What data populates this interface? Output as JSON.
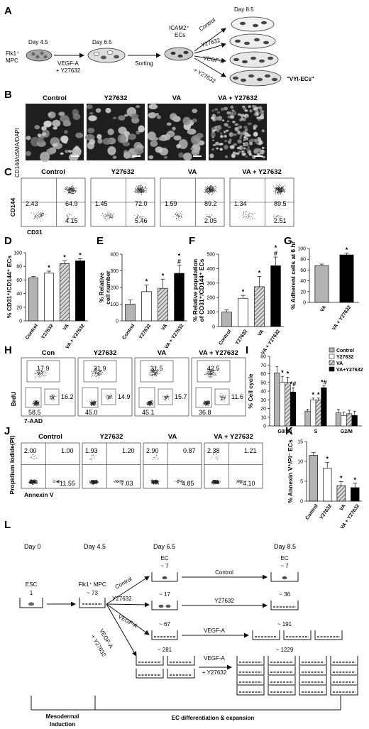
{
  "panels": {
    "A": {
      "letter": "A",
      "day45": "Day 4.5",
      "flk1": "Flk1⁺",
      "mpc": "MPC",
      "day65": "Day 6.5",
      "vegfa": "VEGF-A",
      "y27632": "+ Y27632",
      "sorting": "Sorting",
      "icam2": "ICAM2⁺",
      "ecs": "ECs",
      "day85": "Day 8.5",
      "arrows": [
        "Control",
        "Y27632",
        "VEGF-A",
        "VEGF-A\n+ Y27632"
      ],
      "vyi": "\"VYI-ECs\""
    },
    "B": {
      "letter": "B",
      "ylabel": "CD144/αSMA/DAPI",
      "headers": [
        "Control",
        "Y27632",
        "VA",
        "VA + Y27632"
      ]
    },
    "C": {
      "letter": "C",
      "headers": [
        "Control",
        "Y27632",
        "VA",
        "VA + Y27632"
      ],
      "ylabel": "CD144",
      "xlabel": "CD31",
      "quadrants": [
        {
          "ul": "2.43",
          "ur": "64.9",
          "lr": "4.15"
        },
        {
          "ul": "1.45",
          "ur": "72.0",
          "lr": "5.46"
        },
        {
          "ul": "1.59",
          "ur": "89.2",
          "lr": "2.05"
        },
        {
          "ul": "1.34",
          "ur": "89.5",
          "lr": "2.51"
        }
      ]
    },
    "D": {
      "letter": "D",
      "ylabel": "% CD31⁺/CD144⁺ ECs"
    },
    "E": {
      "letter": "E",
      "ylabel": "% Relative cell number"
    },
    "F": {
      "letter": "F",
      "ylabel": "% Relative population of CD31⁺/CD144⁺ ECs"
    },
    "G": {
      "letter": "G",
      "ylabel": "% Adherent cells at 6 hr"
    },
    "H": {
      "letter": "H",
      "headers": [
        "Con",
        "Y27632",
        "VA",
        "VA + Y27632"
      ],
      "ylabel": "BrdU",
      "xlabel": "7-AAD",
      "gates": [
        {
          "top": "17.9",
          "mid": "16.2",
          "bot": "58.5"
        },
        {
          "top": "31.9",
          "mid": "14.9",
          "bot": "45.0"
        },
        {
          "top": "31.5",
          "mid": "15.7",
          "bot": "45.1"
        },
        {
          "top": "42.5",
          "mid": "11.6",
          "bot": "36.8"
        }
      ]
    },
    "I": {
      "letter": "I",
      "ylabel": "% Cell cycle",
      "legend": [
        "Control",
        "Y27632",
        "VA",
        "VA+Y27632"
      ]
    },
    "J": {
      "letter": "J",
      "headers": [
        "Control",
        "Y27632",
        "VA",
        "VA + Y27632"
      ],
      "ylabel": "Propidium Iodide(PI)",
      "xlabel": "Annexin V",
      "quadrants": [
        {
          "ul": "2.00",
          "ur": "1.00",
          "lr": "11.55"
        },
        {
          "ul": "1.93",
          "ur": "1.20",
          "lr": "7.03"
        },
        {
          "ul": "2.90",
          "ur": "0.87",
          "lr": "4.85"
        },
        {
          "ul": "2.38",
          "ur": "1.21",
          "lr": "4.10"
        }
      ]
    },
    "K": {
      "letter": "K",
      "ylabel": "% Annexin V⁺/PI⁻ ECs"
    },
    "L": {
      "letter": "L",
      "days": [
        "Day 0",
        "Day 4.5",
        "Day 6.5",
        "Day 8.5"
      ],
      "esc": "ESC",
      "esc_count": "1",
      "flk1mpc": "Flk1⁺ MPC",
      "mpc_count": "~ 73",
      "ec65": "EC",
      "ec85": "EC",
      "branch_labels": [
        "Control",
        "Y27632",
        "VEGF-A",
        "VEGF-A\n+ Y27632"
      ],
      "row_labels": [
        "Control",
        "Y27632",
        "VEGF-A",
        "VEGF-A\n+ Y27632"
      ],
      "counts_d65": [
        "~ 7",
        "~ 17",
        "~ 67",
        "~ 281"
      ],
      "counts_d85": [
        "~ 7",
        "~ 36",
        "~ 191",
        "~ 1229"
      ],
      "mesoderm": "Mesodermal\nInduction",
      "ecdiff": "EC differentiation & expansion"
    }
  },
  "chart_data": [
    {
      "panel": "D",
      "type": "bar",
      "categories": [
        "Control",
        "Y27632",
        "VA",
        "VA + Y27632"
      ],
      "values": [
        63,
        70,
        84,
        88
      ],
      "errors": [
        2,
        3,
        4,
        3
      ],
      "significance": [
        "",
        "*",
        "*",
        "*"
      ],
      "ylim": [
        0,
        100
      ],
      "yticks": [
        0,
        20,
        40,
        60,
        80,
        100
      ],
      "ylabel": "% CD31⁺/CD144⁺ ECs"
    },
    {
      "panel": "E",
      "type": "bar",
      "categories": [
        "Control",
        "Y27632",
        "VA",
        "VA + Y27632"
      ],
      "values": [
        100,
        175,
        195,
        285
      ],
      "errors": [
        25,
        40,
        55,
        50
      ],
      "significance": [
        "",
        "*",
        "*",
        "*#"
      ],
      "ylim": [
        0,
        400
      ],
      "yticks": [
        0,
        100,
        200,
        300,
        400
      ],
      "ylabel": "% Relative cell number"
    },
    {
      "panel": "F",
      "type": "bar",
      "categories": [
        "Control",
        "Y27632",
        "VA",
        "VA + Y27632"
      ],
      "values": [
        100,
        195,
        275,
        420
      ],
      "errors": [
        15,
        20,
        70,
        60
      ],
      "significance": [
        "",
        "*",
        "*",
        "*#"
      ],
      "ylim": [
        0,
        500
      ],
      "yticks": [
        0,
        100,
        200,
        300,
        400,
        500
      ],
      "ylabel": "% Relative population of CD31⁺/CD144⁺ ECs"
    },
    {
      "panel": "G",
      "type": "bar",
      "categories": [
        "VA",
        "VA + Y27632"
      ],
      "values": [
        68,
        88
      ],
      "errors": [
        3,
        3
      ],
      "significance": [
        "",
        "*"
      ],
      "ylim": [
        0,
        100
      ],
      "yticks": [
        0,
        20,
        40,
        60,
        80,
        100
      ],
      "ylabel": "% Adherent cells at 6 hr"
    },
    {
      "panel": "I",
      "type": "bar",
      "categories": [
        "G0/G1",
        "S",
        "G2/M"
      ],
      "series": [
        {
          "name": "Control",
          "values": [
            61,
            17,
            15
          ],
          "errors": [
            7,
            2,
            4
          ]
        },
        {
          "name": "Y27632",
          "values": [
            50,
            30,
            12
          ],
          "errors": [
            7,
            2,
            4
          ]
        },
        {
          "name": "VA",
          "values": [
            50,
            30,
            14
          ],
          "errors": [
            6,
            2,
            4
          ]
        },
        {
          "name": "VA+Y27632",
          "values": [
            39,
            44,
            12
          ],
          "errors": [
            5,
            2,
            5
          ]
        }
      ],
      "significance": [
        [
          "",
          "*",
          "*",
          "*#"
        ],
        [
          "",
          "*",
          "*",
          "*#"
        ],
        [
          "",
          "",
          "",
          ""
        ]
      ],
      "ylim": [
        0,
        80
      ],
      "yticks": [
        0,
        10,
        20,
        30,
        40,
        50,
        60,
        70,
        80
      ],
      "ylabel": "% Cell cycle",
      "legend": "top-right"
    },
    {
      "panel": "K",
      "type": "bar",
      "categories": [
        "Control",
        "Y27632",
        "VA",
        "VA + Y27632"
      ],
      "values": [
        11.5,
        8.3,
        3.9,
        3.4
      ],
      "errors": [
        0.7,
        1.4,
        1.0,
        1.1
      ],
      "significance": [
        "",
        "*",
        "*",
        "*"
      ],
      "ylim": [
        0,
        15
      ],
      "yticks": [
        0,
        5,
        10,
        15
      ],
      "ylabel": "% Annexin V⁺/PI⁻ ECs"
    }
  ],
  "colors": {
    "control": "#b3b3b3",
    "y27632": "#ffffff",
    "va": "#8c8c8c",
    "vay": "#000000",
    "micro": "#1e1e1e"
  }
}
